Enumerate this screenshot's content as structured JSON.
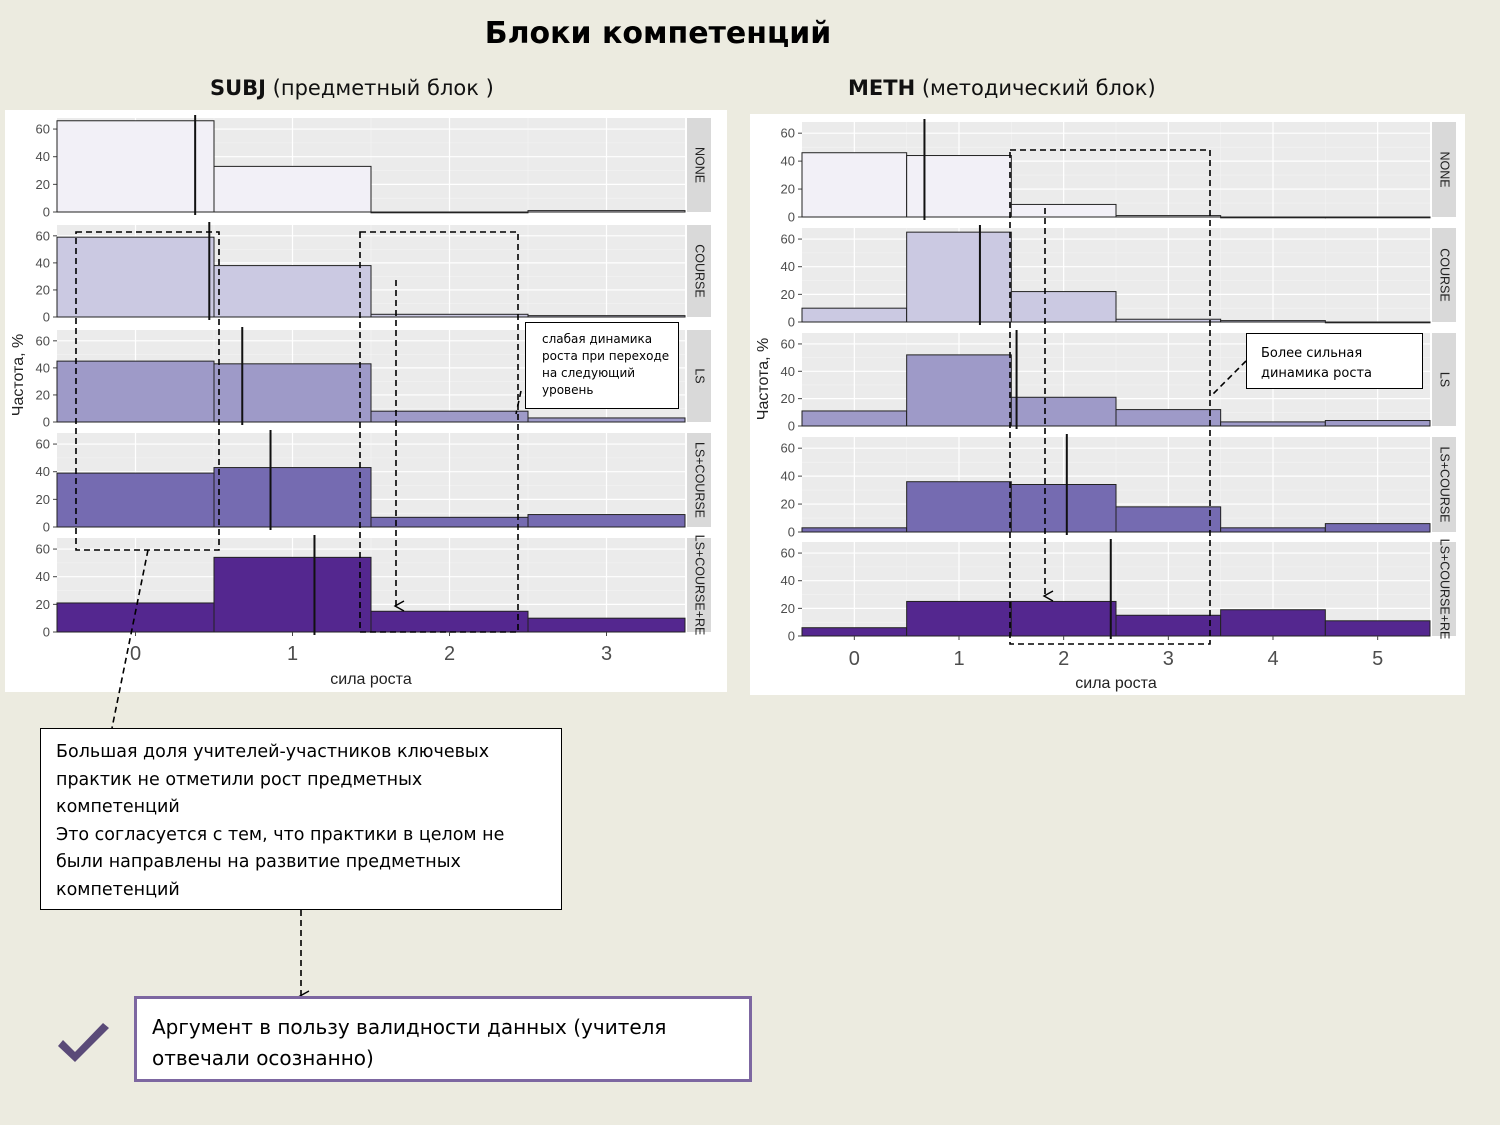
{
  "title": "Блоки компетенций",
  "subtitles": {
    "subj_bold": "SUBJ",
    "subj_rest": " (предметный блок )",
    "meth_bold": "METH",
    "meth_rest": " (методический блок)"
  },
  "notes": {
    "subj_callout": "слабая динамика роста при переходе на следующий уровень",
    "meth_callout": "Более сильная динамика роста",
    "main_text_lines": [
      "Большая доля учителей-участников ключевых практик не отметили рост предметных компетенций",
      "Это согласуется с тем, что практики в целом не были направлены на развитие предметных компетенций"
    ],
    "verdict": "Аргумент в пользу валидности данных (учителя отвечали осознанно)"
  },
  "colors": {
    "background": "#ecebe0",
    "panel_bg": "#ebebeb",
    "strip_bg": "#d9d9d9",
    "verdict_border": "#7d67a1",
    "check": "#5a4a78",
    "facet_fills": [
      "#f2f0f7",
      "#cbc9e2",
      "#9e9ac8",
      "#756bb1",
      "#54278f"
    ]
  },
  "icons": {
    "verdict": "check-icon"
  },
  "chart_data": [
    {
      "type": "bar",
      "id": "subj",
      "title": "SUBJ (предметный блок )",
      "xlabel": "сила роста",
      "ylabel": "Частота, %",
      "x": [
        0,
        1,
        2,
        3
      ],
      "xlim": [
        -0.5,
        3.5
      ],
      "ylim": [
        0,
        68
      ],
      "yticks": [
        0,
        20,
        40,
        60
      ],
      "grid": true,
      "facets": [
        {
          "name": "NONE",
          "values": [
            66,
            33,
            0,
            1
          ],
          "mean_line": 0.38
        },
        {
          "name": "COURSE",
          "values": [
            59,
            38,
            2,
            1
          ],
          "mean_line": 0.47
        },
        {
          "name": "LS",
          "values": [
            45,
            43,
            8,
            3
          ],
          "mean_line": 0.68
        },
        {
          "name": "LS+COURSE",
          "values": [
            39,
            43,
            7,
            9
          ],
          "mean_line": 0.86
        },
        {
          "name": "LS+COURSE+RE",
          "values": [
            21,
            54,
            15,
            10
          ],
          "mean_line": 1.14
        }
      ]
    },
    {
      "type": "bar",
      "id": "meth",
      "title": "METH (методический блок)",
      "xlabel": "сила роста",
      "ylabel": "Частота, %",
      "x": [
        0,
        1,
        2,
        3,
        4,
        5
      ],
      "xlim": [
        -0.5,
        5.5
      ],
      "ylim": [
        0,
        68
      ],
      "yticks": [
        0,
        20,
        40,
        60
      ],
      "grid": true,
      "facets": [
        {
          "name": "NONE",
          "values": [
            46,
            44,
            9,
            1,
            0,
            0
          ],
          "mean_line": 0.67
        },
        {
          "name": "COURSE",
          "values": [
            10,
            65,
            22,
            2,
            1,
            0
          ],
          "mean_line": 1.2
        },
        {
          "name": "LS",
          "values": [
            11,
            52,
            21,
            12,
            3,
            4
          ],
          "mean_line": 1.55
        },
        {
          "name": "LS+COURSE",
          "values": [
            3,
            36,
            34,
            18,
            3,
            6
          ],
          "mean_line": 2.03
        },
        {
          "name": "LS+COURSE+RE",
          "values": [
            6,
            25,
            25,
            15,
            19,
            11
          ],
          "mean_line": 2.45
        }
      ]
    }
  ]
}
